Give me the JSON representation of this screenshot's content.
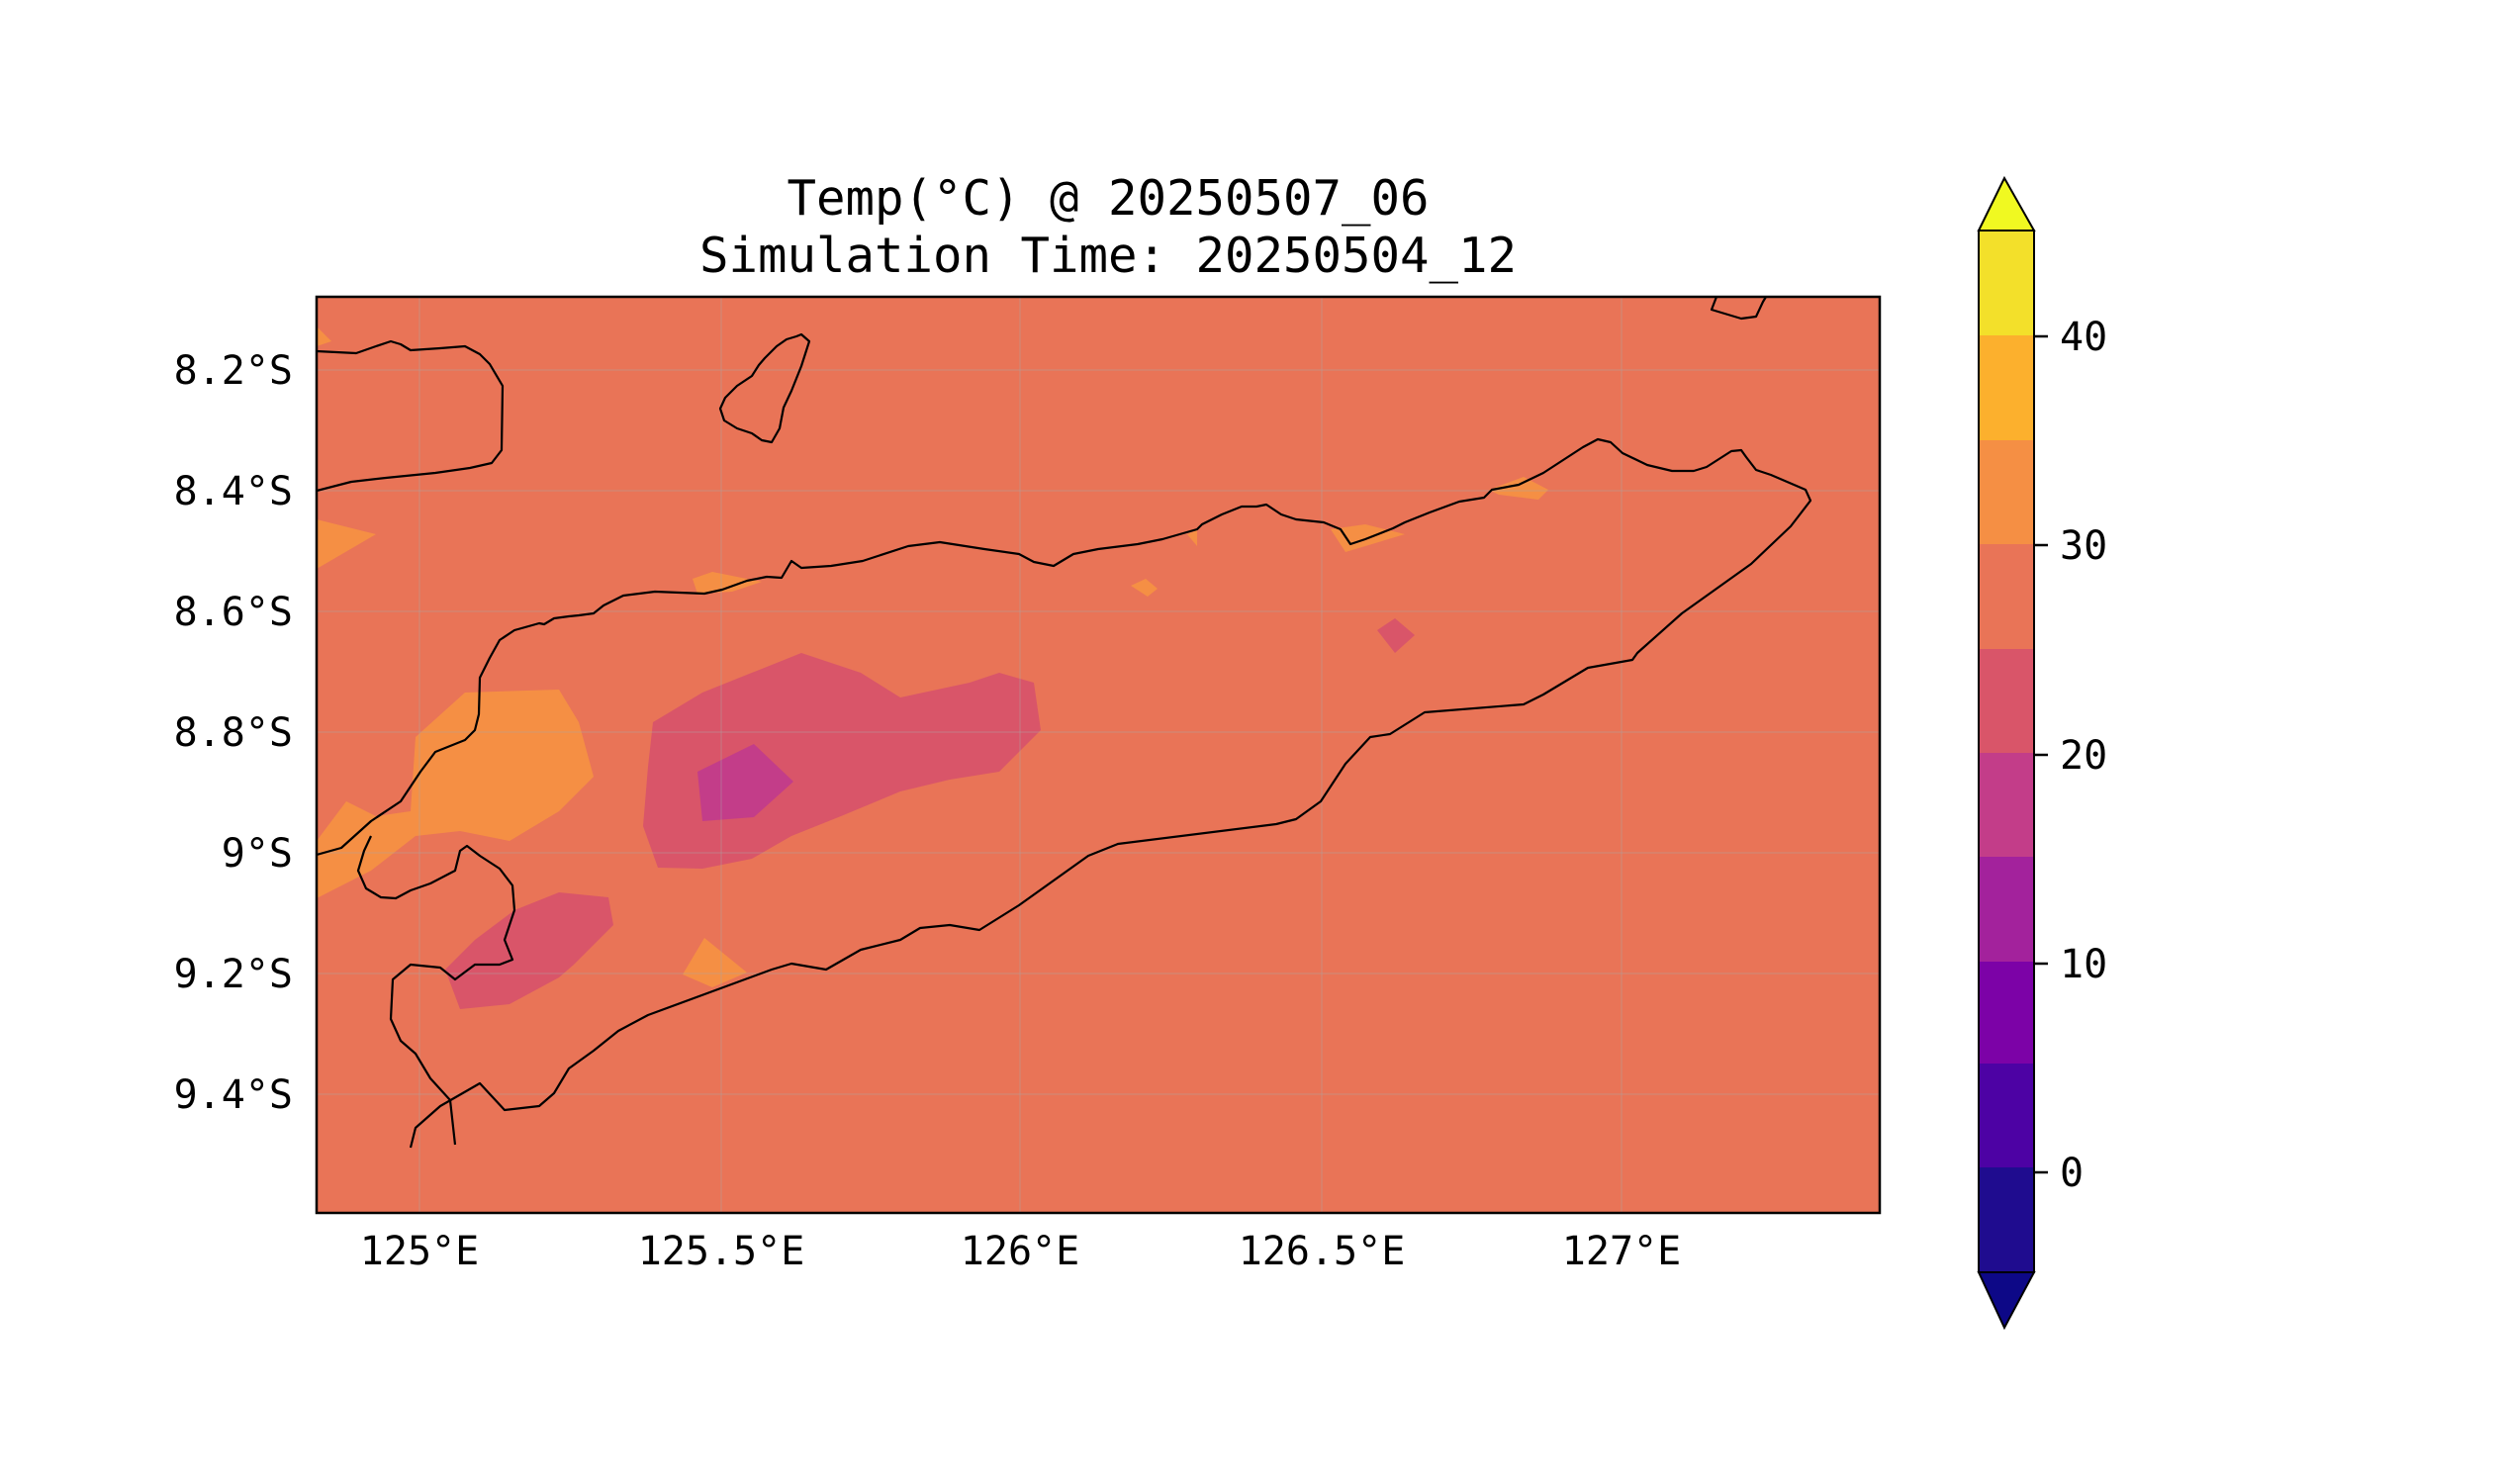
{
  "figure": {
    "title_line1": "Temp(°C) @ 20250507_06",
    "title_line2": "Simulation Time: 20250504_12"
  },
  "map": {
    "background_level_color": "#e97457",
    "coastline_color": "#000000",
    "lat_ticks": [
      "8.2°S",
      "8.4°S",
      "8.6°S",
      "8.8°S",
      "9°S",
      "9.2°S",
      "9.4°S"
    ],
    "lon_ticks": [
      "125°E",
      "125.5°E",
      "126°E",
      "126.5°E",
      "127°E"
    ],
    "lat_range": [
      "8.1°S",
      "9.6°S"
    ],
    "lon_range": [
      "124.8°E",
      "127.4°E"
    ]
  },
  "colorbar": {
    "cmap": "plasma",
    "extend": "both",
    "tick_labels": [
      "0",
      "10",
      "20",
      "30",
      "40"
    ],
    "levels": [
      -5,
      0,
      5,
      10,
      15,
      20,
      25,
      30,
      35,
      40,
      45
    ],
    "colors": [
      "#1f0c8f",
      "#4d02a4",
      "#7c02a7",
      "#a3229c",
      "#c33d89",
      "#d95569",
      "#e97457",
      "#f58f44",
      "#fcb02d",
      "#f3e02a"
    ],
    "under_color": "#0d0887",
    "over_color": "#f0f921"
  }
}
